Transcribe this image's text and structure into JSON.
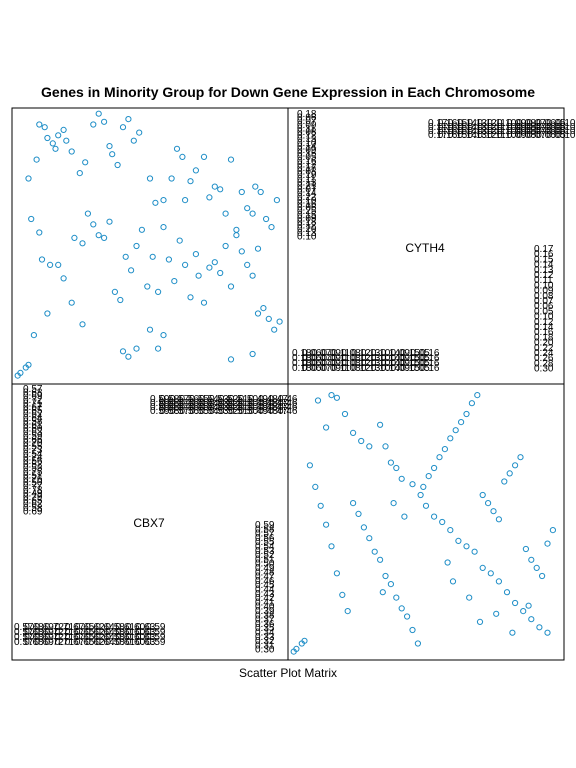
{
  "chart_data": {
    "type": "scatter",
    "title": "Genes in Minority Group for Down Gene Expression in Each Chromosome",
    "subtitle": "Scatter Plot Matrix",
    "variables": [
      "CYTH4",
      "CBX7"
    ],
    "point_color": "#1f8ec7",
    "grid": false,
    "points_panel_top_left": [
      [
        0.01,
        0.02
      ],
      [
        0.02,
        0.03
      ],
      [
        0.04,
        0.05
      ],
      [
        0.05,
        0.06
      ],
      [
        0.07,
        0.17
      ],
      [
        0.12,
        0.25
      ],
      [
        0.25,
        0.21
      ],
      [
        0.05,
        0.75
      ],
      [
        0.08,
        0.82
      ],
      [
        0.09,
        0.95
      ],
      [
        0.11,
        0.94
      ],
      [
        0.12,
        0.9
      ],
      [
        0.14,
        0.88
      ],
      [
        0.15,
        0.86
      ],
      [
        0.16,
        0.91
      ],
      [
        0.18,
        0.93
      ],
      [
        0.19,
        0.89
      ],
      [
        0.21,
        0.85
      ],
      [
        0.24,
        0.77
      ],
      [
        0.26,
        0.81
      ],
      [
        0.29,
        0.95
      ],
      [
        0.31,
        0.99
      ],
      [
        0.33,
        0.96
      ],
      [
        0.35,
        0.87
      ],
      [
        0.36,
        0.84
      ],
      [
        0.38,
        0.8
      ],
      [
        0.4,
        0.94
      ],
      [
        0.42,
        0.97
      ],
      [
        0.44,
        0.89
      ],
      [
        0.46,
        0.92
      ],
      [
        0.5,
        0.75
      ],
      [
        0.52,
        0.66
      ],
      [
        0.55,
        0.67
      ],
      [
        0.58,
        0.75
      ],
      [
        0.6,
        0.86
      ],
      [
        0.62,
        0.83
      ],
      [
        0.63,
        0.67
      ],
      [
        0.65,
        0.74
      ],
      [
        0.67,
        0.78
      ],
      [
        0.7,
        0.83
      ],
      [
        0.72,
        0.68
      ],
      [
        0.74,
        0.72
      ],
      [
        0.76,
        0.71
      ],
      [
        0.78,
        0.62
      ],
      [
        0.8,
        0.82
      ],
      [
        0.82,
        0.56
      ],
      [
        0.84,
        0.7
      ],
      [
        0.86,
        0.64
      ],
      [
        0.88,
        0.62
      ],
      [
        0.89,
        0.72
      ],
      [
        0.91,
        0.7
      ],
      [
        0.93,
        0.6
      ],
      [
        0.95,
        0.57
      ],
      [
        0.97,
        0.67
      ],
      [
        0.06,
        0.6
      ],
      [
        0.09,
        0.55
      ],
      [
        0.1,
        0.45
      ],
      [
        0.13,
        0.43
      ],
      [
        0.16,
        0.43
      ],
      [
        0.18,
        0.38
      ],
      [
        0.21,
        0.29
      ],
      [
        0.22,
        0.53
      ],
      [
        0.25,
        0.51
      ],
      [
        0.27,
        0.62
      ],
      [
        0.29,
        0.58
      ],
      [
        0.31,
        0.54
      ],
      [
        0.33,
        0.53
      ],
      [
        0.35,
        0.59
      ],
      [
        0.37,
        0.33
      ],
      [
        0.39,
        0.3
      ],
      [
        0.41,
        0.46
      ],
      [
        0.43,
        0.41
      ],
      [
        0.45,
        0.5
      ],
      [
        0.47,
        0.56
      ],
      [
        0.49,
        0.35
      ],
      [
        0.51,
        0.46
      ],
      [
        0.53,
        0.33
      ],
      [
        0.55,
        0.57
      ],
      [
        0.57,
        0.45
      ],
      [
        0.59,
        0.37
      ],
      [
        0.61,
        0.52
      ],
      [
        0.63,
        0.43
      ],
      [
        0.65,
        0.31
      ],
      [
        0.67,
        0.47
      ],
      [
        0.68,
        0.39
      ],
      [
        0.7,
        0.29
      ],
      [
        0.72,
        0.42
      ],
      [
        0.74,
        0.44
      ],
      [
        0.76,
        0.4
      ],
      [
        0.78,
        0.5
      ],
      [
        0.8,
        0.35
      ],
      [
        0.82,
        0.54
      ],
      [
        0.84,
        0.48
      ],
      [
        0.86,
        0.43
      ],
      [
        0.88,
        0.39
      ],
      [
        0.9,
        0.49
      ],
      [
        0.92,
        0.27
      ],
      [
        0.94,
        0.23
      ],
      [
        0.96,
        0.19
      ],
      [
        0.98,
        0.22
      ],
      [
        0.4,
        0.11
      ],
      [
        0.42,
        0.09
      ],
      [
        0.45,
        0.12
      ],
      [
        0.5,
        0.19
      ],
      [
        0.53,
        0.12
      ],
      [
        0.55,
        0.17
      ],
      [
        0.8,
        0.08
      ],
      [
        0.88,
        0.1
      ],
      [
        0.9,
        0.25
      ]
    ],
    "points_panel_bottom_right": [
      [
        0.01,
        0.02
      ],
      [
        0.02,
        0.03
      ],
      [
        0.04,
        0.05
      ],
      [
        0.05,
        0.06
      ],
      [
        0.1,
        0.95
      ],
      [
        0.13,
        0.85
      ],
      [
        0.15,
        0.97
      ],
      [
        0.17,
        0.96
      ],
      [
        0.2,
        0.9
      ],
      [
        0.23,
        0.83
      ],
      [
        0.26,
        0.8
      ],
      [
        0.29,
        0.78
      ],
      [
        0.33,
        0.86
      ],
      [
        0.35,
        0.78
      ],
      [
        0.37,
        0.72
      ],
      [
        0.39,
        0.7
      ],
      [
        0.41,
        0.66
      ],
      [
        0.45,
        0.64
      ],
      [
        0.48,
        0.6
      ],
      [
        0.5,
        0.56
      ],
      [
        0.53,
        0.52
      ],
      [
        0.56,
        0.5
      ],
      [
        0.59,
        0.47
      ],
      [
        0.62,
        0.43
      ],
      [
        0.65,
        0.41
      ],
      [
        0.68,
        0.39
      ],
      [
        0.71,
        0.33
      ],
      [
        0.74,
        0.31
      ],
      [
        0.77,
        0.28
      ],
      [
        0.8,
        0.24
      ],
      [
        0.83,
        0.2
      ],
      [
        0.86,
        0.17
      ],
      [
        0.89,
        0.14
      ],
      [
        0.92,
        0.11
      ],
      [
        0.95,
        0.09
      ],
      [
        0.07,
        0.71
      ],
      [
        0.09,
        0.63
      ],
      [
        0.11,
        0.56
      ],
      [
        0.13,
        0.49
      ],
      [
        0.15,
        0.41
      ],
      [
        0.17,
        0.31
      ],
      [
        0.19,
        0.23
      ],
      [
        0.21,
        0.17
      ],
      [
        0.23,
        0.57
      ],
      [
        0.25,
        0.53
      ],
      [
        0.27,
        0.48
      ],
      [
        0.29,
        0.44
      ],
      [
        0.31,
        0.39
      ],
      [
        0.33,
        0.36
      ],
      [
        0.35,
        0.3
      ],
      [
        0.37,
        0.27
      ],
      [
        0.39,
        0.22
      ],
      [
        0.41,
        0.18
      ],
      [
        0.43,
        0.15
      ],
      [
        0.45,
        0.1
      ],
      [
        0.47,
        0.05
      ],
      [
        0.49,
        0.63
      ],
      [
        0.51,
        0.67
      ],
      [
        0.53,
        0.7
      ],
      [
        0.55,
        0.74
      ],
      [
        0.57,
        0.77
      ],
      [
        0.59,
        0.81
      ],
      [
        0.61,
        0.84
      ],
      [
        0.63,
        0.87
      ],
      [
        0.65,
        0.9
      ],
      [
        0.67,
        0.94
      ],
      [
        0.69,
        0.97
      ],
      [
        0.71,
        0.6
      ],
      [
        0.73,
        0.57
      ],
      [
        0.75,
        0.54
      ],
      [
        0.77,
        0.51
      ],
      [
        0.79,
        0.65
      ],
      [
        0.81,
        0.68
      ],
      [
        0.83,
        0.71
      ],
      [
        0.85,
        0.74
      ],
      [
        0.87,
        0.4
      ],
      [
        0.89,
        0.36
      ],
      [
        0.91,
        0.33
      ],
      [
        0.93,
        0.3
      ],
      [
        0.95,
        0.42
      ],
      [
        0.97,
        0.47
      ],
      [
        0.34,
        0.24
      ],
      [
        0.38,
        0.57
      ],
      [
        0.42,
        0.52
      ],
      [
        0.58,
        0.35
      ],
      [
        0.6,
        0.28
      ],
      [
        0.66,
        0.22
      ],
      [
        0.7,
        0.13
      ],
      [
        0.76,
        0.16
      ],
      [
        0.82,
        0.09
      ],
      [
        0.88,
        0.19
      ]
    ],
    "tick_labels": {
      "cyth4_left_column": [
        "0.18",
        "0.06",
        "0.07",
        "0.09",
        "0.11",
        "0.08",
        "0.12",
        "0.13",
        "0.10",
        "0.14",
        "0.09",
        "0.15",
        "0.05",
        "0.16",
        "0.12",
        "0.17",
        "0.08",
        "0.19",
        "0.11",
        "0.13",
        "0.21",
        "0.07",
        "0.14",
        "0.22",
        "0.10",
        "0.16",
        "0.06",
        "0.25",
        "0.15",
        "0.09",
        "0.18",
        "0.12",
        "0.20",
        "0.13",
        "0.10"
      ],
      "cyth4_right_column": [
        "0.17",
        "0.16",
        "0.15",
        "0.14",
        "0.13",
        "0.12",
        "0.11",
        "0.10",
        "0.09",
        "0.08",
        "0.07",
        "0.06",
        "0.05",
        "0.10",
        "0.12",
        "0.14",
        "0.16",
        "0.18",
        "0.20",
        "0.22",
        "0.24",
        "0.26",
        "0.28",
        "0.30"
      ],
      "cbx7_left_column": [
        "0.57",
        "0.68",
        "0.69",
        "0.72",
        "0.71",
        "0.67",
        "0.65",
        "0.62",
        "0.64",
        "0.58",
        "0.61",
        "0.60",
        "0.63",
        "0.59",
        "0.66",
        "0.70",
        "0.55",
        "0.73",
        "0.54",
        "0.74",
        "0.56",
        "0.52",
        "0.53",
        "0.75",
        "0.51",
        "0.76",
        "0.50",
        "0.77",
        "0.78",
        "0.49",
        "0.79",
        "0.65",
        "0.62",
        "0.58",
        "0.69"
      ],
      "cbx7_right_column": [
        "0.59",
        "0.58",
        "0.57",
        "0.56",
        "0.55",
        "0.54",
        "0.53",
        "0.52",
        "0.51",
        "0.50",
        "0.49",
        "0.48",
        "0.47",
        "0.46",
        "0.45",
        "0.44",
        "0.43",
        "0.42",
        "0.41",
        "0.40",
        "0.39",
        "0.38",
        "0.37",
        "0.36",
        "0.35",
        "0.34",
        "0.33",
        "0.32",
        "0.31",
        "0.30"
      ]
    }
  }
}
